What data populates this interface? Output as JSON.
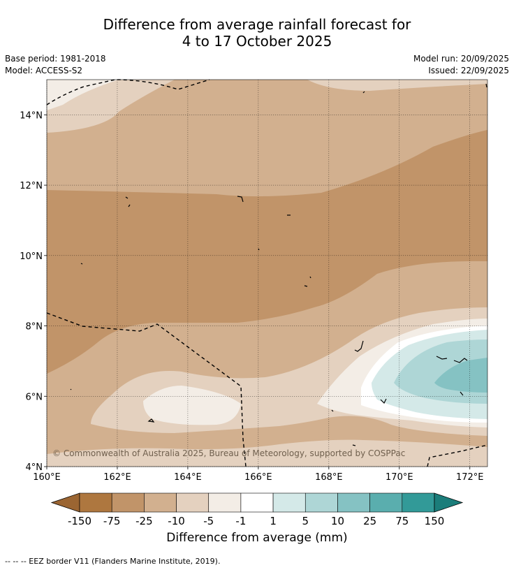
{
  "header": {
    "title_line1": "Difference from average rainfall forecast for",
    "title_line2": "4 to 17 October 2025",
    "base_period": "Base period: 1981-2018",
    "model": "Model: ACCESS-S2",
    "model_run": "Model run: 20/09/2025",
    "issued": "Issued: 22/09/2025"
  },
  "map": {
    "lon_range": [
      160,
      172.5
    ],
    "lat_range": [
      4,
      15
    ],
    "x_ticks": [
      "160°E",
      "162°E",
      "164°E",
      "166°E",
      "168°E",
      "170°E",
      "172°E"
    ],
    "x_tick_values": [
      160,
      162,
      164,
      166,
      168,
      170,
      172
    ],
    "y_ticks": [
      "4°N",
      "6°N",
      "8°N",
      "10°N",
      "12°N",
      "14°N"
    ],
    "y_tick_values": [
      4,
      6,
      8,
      10,
      12,
      14
    ],
    "copyright": "© Commonwealth of Australia 2025, Bureau of Meteorology, supported by COSPPac"
  },
  "colorbar": {
    "title": "Difference from average (mm)",
    "labels": [
      "-150",
      "-75",
      "-25",
      "-10",
      "-5",
      "-1",
      "1",
      "5",
      "10",
      "25",
      "75",
      "150"
    ],
    "colors": [
      "#9b6532",
      "#ae773f",
      "#c19469",
      "#d2b08f",
      "#e4d1bf",
      "#f3ede6",
      "#ffffff",
      "#d4e9e8",
      "#aed6d6",
      "#85c2c3",
      "#5aaeae",
      "#329a98",
      "#1b7d7a"
    ]
  },
  "footnote": "--  --  -- EEZ border V11 (Flanders Marine Institute, 2019)."
}
